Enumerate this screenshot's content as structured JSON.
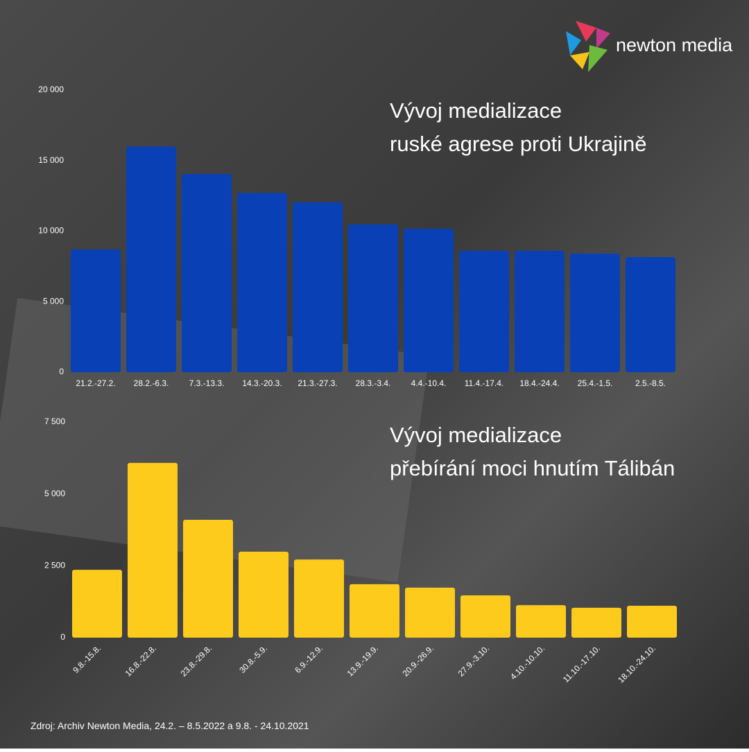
{
  "logo": {
    "text": "newton media"
  },
  "source": "Zdroj: Archiv Newton Media, 24.2. – 8.5.2022 a 9.8. - 24.10.2021",
  "chart_data": [
    {
      "type": "bar",
      "title": [
        "Vývoj medializace",
        "ruské agrese proti Ukrajině"
      ],
      "categories": [
        "21.2.-27.2.",
        "28.2.-6.3.",
        "7.3.-13.3.",
        "14.3.-20.3.",
        "21.3.-27.3.",
        "28.3.-3.4.",
        "4.4.-10.4.",
        "11.4.-17.4.",
        "18.4.-24.4.",
        "25.4.-1.5.",
        "2.5.-8.5."
      ],
      "values": [
        8700,
        16000,
        14050,
        12700,
        12050,
        10470,
        10170,
        8600,
        8600,
        8400,
        8160
      ],
      "color": "#0a40b5",
      "ylim": [
        0,
        20000
      ],
      "yticks": [
        0,
        {
          "value": 5000,
          "label": "5 000"
        },
        {
          "value": 10000,
          "label": "10 000"
        },
        {
          "value": 15000,
          "label": "15 000"
        },
        {
          "value": 20000,
          "label": "20 000"
        }
      ]
    },
    {
      "type": "bar",
      "title": [
        "Vývoj medializace",
        "přebírání moci hnutím Tálibán"
      ],
      "categories": [
        "9.8.-15.8.",
        "16.8.-22.8.",
        "23.8.-29.8.",
        "30.8.-5.9.",
        "6.9.-12.9.",
        "13.9.-19.9.",
        "20.9.-26.9.",
        "27.9.-3.10.",
        "4.10.-10.10.",
        "11.10.-17.10.",
        "18.10.-24.10."
      ],
      "values": [
        2360,
        6080,
        4100,
        2990,
        2720,
        1860,
        1740,
        1470,
        1130,
        1040,
        1110
      ],
      "color": "#fdcb1c",
      "ylim": [
        0,
        7500
      ],
      "yticks": [
        0,
        {
          "value": 2500,
          "label": "2 500"
        },
        {
          "value": 5000,
          "label": "5 000"
        },
        {
          "value": 7500,
          "label": "7 500"
        }
      ]
    }
  ]
}
